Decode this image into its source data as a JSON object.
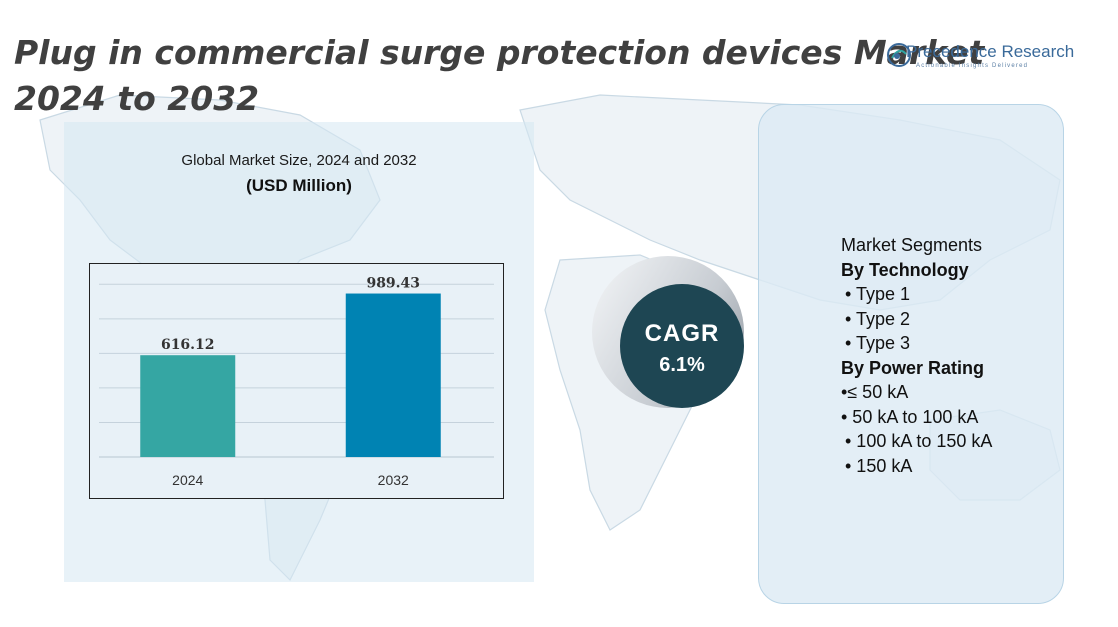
{
  "title": "Plug in commercial surge protection devices Market 2024 to 2032",
  "logo": {
    "name": "Precedence Research",
    "tagline": "Actionable Insights Delivered"
  },
  "chart_title": "Global Market Size, 2024 and 2032",
  "chart_unit": "(USD Million)",
  "chart_data": {
    "type": "bar",
    "categories": [
      "2024",
      "2032"
    ],
    "values": [
      616.12,
      989.43
    ],
    "value_labels": [
      "616.12",
      "989.43"
    ],
    "bar_colors": [
      "#35a6a3",
      "#0083b3"
    ],
    "ylim": [
      0,
      1150
    ],
    "gridlines": 5,
    "grid": true
  },
  "cagr": {
    "label": "CAGR",
    "value": "6.1%"
  },
  "segments": {
    "heading": "Market Segments",
    "groups": [
      {
        "title": "By Technology",
        "items": [
          "•  Type 1",
          "•  Type 2",
          "•  Type 3"
        ]
      },
      {
        "title": "By Power Rating",
        "items": [
          "•≤ 50 kA",
          "• 50 kA to 100 kA",
          "•  100 kA to 150 kA",
          "•  150 kA"
        ]
      }
    ]
  },
  "colors": {
    "accent_dark": "#1e4653",
    "bar_2024": "#35a6a3",
    "bar_2032": "#0083b3"
  }
}
